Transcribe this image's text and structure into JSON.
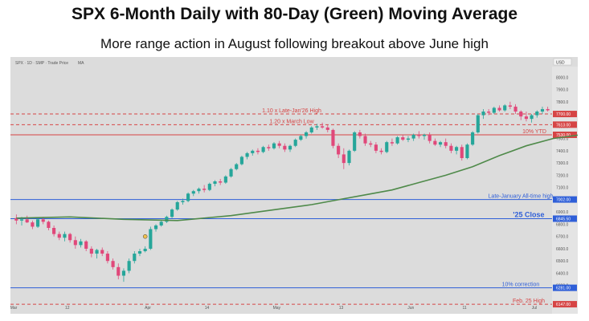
{
  "title": "SPX 6-Month Daily with 80-Day (Green) Moving Average",
  "subtitle": "More range action in August following breakout above June high",
  "header": {
    "symbol": "SPX · 1D · SMP · Trade Price",
    "indicator": "MA",
    "currency": "USD"
  },
  "chart_data": {
    "type": "candlestick",
    "ylim": [
      6200,
      8100
    ],
    "y_ticks": [
      8000,
      7900,
      7800,
      7700,
      7600,
      7500,
      7400,
      7300,
      7200,
      7100,
      7000,
      6900,
      6800,
      6700,
      6600,
      6500,
      6400,
      6300
    ],
    "x_ticks": [
      "Mar",
      "12",
      "Apr",
      "14",
      "May",
      "13",
      "Jun",
      "11",
      "Jul",
      "14",
      "Aug",
      "13",
      "Sep"
    ],
    "colors": {
      "up": "#26a69a",
      "down": "#e0487a",
      "ma": "#4f8a4a",
      "level_red": "#d64545",
      "level_blue": "#2f5fd8"
    },
    "levels": [
      {
        "label": "1.10 x Late-Jan'26 High",
        "value": 7700,
        "tag": "7700.00",
        "style": "dashed",
        "color": "red"
      },
      {
        "label": "1.20 x March Low",
        "value": 7613,
        "tag": "7613.00",
        "style": "dashed",
        "color": "red"
      },
      {
        "label": "10% YTD",
        "value": 7530,
        "tag": "7530.00",
        "style": "solid",
        "color": "red"
      },
      {
        "label": "Late-January All-time high",
        "value": 7002,
        "tag": "7002.00",
        "style": "solid",
        "color": "blue"
      },
      {
        "label": "'25 Close",
        "value": 6845.5,
        "tag": "6845.50",
        "style": "solid",
        "color": "blue"
      },
      {
        "label": "10% correction",
        "value": 6281,
        "tag": "6281.00",
        "style": "solid",
        "color": "blue"
      },
      {
        "label": "Feb. 25 High",
        "value": 6147,
        "tag": "6147.00",
        "style": "dashed",
        "color": "red"
      }
    ],
    "candles": [
      [
        6850,
        6880,
        6800,
        6830
      ],
      [
        6830,
        6860,
        6790,
        6840
      ],
      [
        6840,
        6870,
        6810,
        6815
      ],
      [
        6815,
        6830,
        6760,
        6780
      ],
      [
        6780,
        6850,
        6770,
        6840
      ],
      [
        6840,
        6860,
        6800,
        6820
      ],
      [
        6820,
        6830,
        6750,
        6770
      ],
      [
        6770,
        6790,
        6700,
        6720
      ],
      [
        6720,
        6740,
        6670,
        6690
      ],
      [
        6690,
        6740,
        6660,
        6720
      ],
      [
        6720,
        6730,
        6650,
        6670
      ],
      [
        6670,
        6700,
        6600,
        6630
      ],
      [
        6630,
        6680,
        6610,
        6660
      ],
      [
        6660,
        6670,
        6580,
        6600
      ],
      [
        6600,
        6620,
        6530,
        6560
      ],
      [
        6560,
        6600,
        6520,
        6590
      ],
      [
        6590,
        6610,
        6540,
        6560
      ],
      [
        6560,
        6580,
        6480,
        6500
      ],
      [
        6500,
        6520,
        6430,
        6450
      ],
      [
        6450,
        6480,
        6350,
        6380
      ],
      [
        6380,
        6440,
        6330,
        6420
      ],
      [
        6420,
        6520,
        6400,
        6500
      ],
      [
        6500,
        6580,
        6480,
        6560
      ],
      [
        6560,
        6600,
        6540,
        6580
      ],
      [
        6580,
        6620,
        6570,
        6600
      ],
      [
        6600,
        6780,
        6590,
        6760
      ],
      [
        6760,
        6800,
        6740,
        6790
      ],
      [
        6790,
        6830,
        6780,
        6820
      ],
      [
        6820,
        6870,
        6810,
        6860
      ],
      [
        6860,
        6930,
        6850,
        6920
      ],
      [
        6920,
        6990,
        6910,
        6980
      ],
      [
        6980,
        7010,
        6960,
        6990
      ],
      [
        6990,
        7060,
        6980,
        7050
      ],
      [
        7050,
        7080,
        7030,
        7070
      ],
      [
        7070,
        7100,
        7050,
        7090
      ],
      [
        7090,
        7120,
        7060,
        7080
      ],
      [
        7080,
        7140,
        7070,
        7130
      ],
      [
        7130,
        7160,
        7110,
        7150
      ],
      [
        7150,
        7170,
        7120,
        7140
      ],
      [
        7140,
        7200,
        7130,
        7190
      ],
      [
        7190,
        7260,
        7180,
        7250
      ],
      [
        7250,
        7300,
        7240,
        7290
      ],
      [
        7290,
        7360,
        7280,
        7350
      ],
      [
        7350,
        7390,
        7330,
        7380
      ],
      [
        7380,
        7410,
        7360,
        7400
      ],
      [
        7400,
        7420,
        7370,
        7390
      ],
      [
        7390,
        7440,
        7380,
        7430
      ],
      [
        7430,
        7450,
        7400,
        7420
      ],
      [
        7420,
        7470,
        7410,
        7460
      ],
      [
        7460,
        7480,
        7420,
        7440
      ],
      [
        7440,
        7460,
        7390,
        7410
      ],
      [
        7410,
        7450,
        7390,
        7440
      ],
      [
        7440,
        7500,
        7430,
        7490
      ],
      [
        7490,
        7530,
        7480,
        7520
      ],
      [
        7520,
        7560,
        7500,
        7550
      ],
      [
        7550,
        7600,
        7540,
        7590
      ],
      [
        7590,
        7620,
        7570,
        7600
      ],
      [
        7600,
        7630,
        7580,
        7590
      ],
      [
        7590,
        7610,
        7550,
        7570
      ],
      [
        7570,
        7580,
        7420,
        7440
      ],
      [
        7440,
        7460,
        7340,
        7370
      ],
      [
        7370,
        7420,
        7250,
        7300
      ],
      [
        7300,
        7410,
        7280,
        7400
      ],
      [
        7400,
        7560,
        7390,
        7550
      ],
      [
        7550,
        7570,
        7500,
        7520
      ],
      [
        7520,
        7540,
        7440,
        7460
      ],
      [
        7460,
        7480,
        7430,
        7450
      ],
      [
        7450,
        7470,
        7380,
        7400
      ],
      [
        7400,
        7420,
        7370,
        7390
      ],
      [
        7390,
        7480,
        7380,
        7470
      ],
      [
        7470,
        7500,
        7440,
        7460
      ],
      [
        7460,
        7520,
        7450,
        7510
      ],
      [
        7510,
        7530,
        7480,
        7490
      ],
      [
        7490,
        7520,
        7470,
        7500
      ],
      [
        7500,
        7540,
        7480,
        7530
      ],
      [
        7530,
        7560,
        7500,
        7520
      ],
      [
        7520,
        7540,
        7490,
        7530
      ],
      [
        7530,
        7550,
        7460,
        7480
      ],
      [
        7480,
        7500,
        7440,
        7450
      ],
      [
        7450,
        7480,
        7430,
        7470
      ],
      [
        7470,
        7500,
        7420,
        7440
      ],
      [
        7440,
        7460,
        7380,
        7400
      ],
      [
        7400,
        7440,
        7370,
        7430
      ],
      [
        7430,
        7450,
        7320,
        7340
      ],
      [
        7340,
        7460,
        7330,
        7450
      ],
      [
        7450,
        7560,
        7440,
        7550
      ],
      [
        7550,
        7700,
        7540,
        7690
      ],
      [
        7690,
        7740,
        7660,
        7720
      ],
      [
        7720,
        7740,
        7690,
        7710
      ],
      [
        7710,
        7760,
        7700,
        7750
      ],
      [
        7750,
        7770,
        7720,
        7730
      ],
      [
        7730,
        7780,
        7720,
        7770
      ],
      [
        7770,
        7800,
        7740,
        7760
      ],
      [
        7760,
        7780,
        7700,
        7720
      ],
      [
        7720,
        7730,
        7650,
        7680
      ],
      [
        7680,
        7720,
        7640,
        7660
      ],
      [
        7660,
        7700,
        7630,
        7690
      ],
      [
        7690,
        7730,
        7670,
        7720
      ],
      [
        7720,
        7760,
        7700,
        7740
      ],
      [
        7740,
        7760,
        7720,
        7730
      ]
    ],
    "ma": [
      [
        0,
        6850
      ],
      [
        10,
        6860
      ],
      [
        20,
        6840
      ],
      [
        30,
        6830
      ],
      [
        40,
        6870
      ],
      [
        50,
        6930
      ],
      [
        55,
        6960
      ],
      [
        60,
        7000
      ],
      [
        65,
        7040
      ],
      [
        70,
        7080
      ],
      [
        75,
        7140
      ],
      [
        80,
        7200
      ],
      [
        85,
        7270
      ],
      [
        90,
        7360
      ],
      [
        95,
        7440
      ],
      [
        100,
        7500
      ],
      [
        105,
        7530
      ]
    ]
  }
}
